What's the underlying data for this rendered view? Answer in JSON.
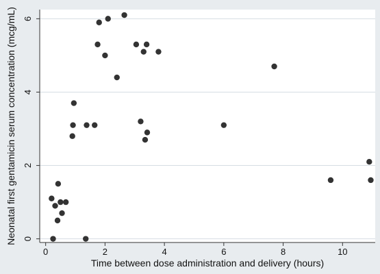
{
  "chart_data": {
    "type": "scatter",
    "title": "",
    "xlabel": "Time between dose administration and delivery (hours)",
    "ylabel": "Neonatal first gentamicin serum concentration (mcg/mL)",
    "xlim": [
      -0.2,
      11.1
    ],
    "ylim": [
      -0.1,
      6.25
    ],
    "xticks": [
      0,
      2,
      4,
      6,
      8,
      10
    ],
    "yticks": [
      0,
      2,
      4,
      6
    ],
    "grid": "horizontal",
    "legend": "none",
    "colors": {
      "page_background": "#e8ecef",
      "plot_background": "#ffffff",
      "point": "#333333",
      "gridline": "#d6dde3",
      "axis": "#333333"
    },
    "points": [
      {
        "x": 0.2,
        "y": 1.1
      },
      {
        "x": 0.25,
        "y": 0.0
      },
      {
        "x": 0.32,
        "y": 0.9
      },
      {
        "x": 0.4,
        "y": 0.5
      },
      {
        "x": 0.42,
        "y": 1.5
      },
      {
        "x": 0.5,
        "y": 1.0
      },
      {
        "x": 0.55,
        "y": 0.7
      },
      {
        "x": 0.68,
        "y": 1.0
      },
      {
        "x": 0.9,
        "y": 2.8
      },
      {
        "x": 0.92,
        "y": 3.1
      },
      {
        "x": 0.95,
        "y": 3.7
      },
      {
        "x": 1.35,
        "y": 0.0
      },
      {
        "x": 1.38,
        "y": 3.1
      },
      {
        "x": 1.65,
        "y": 3.1
      },
      {
        "x": 1.75,
        "y": 5.3
      },
      {
        "x": 1.8,
        "y": 5.9
      },
      {
        "x": 2.0,
        "y": 5.0
      },
      {
        "x": 2.1,
        "y": 6.0
      },
      {
        "x": 2.4,
        "y": 4.4
      },
      {
        "x": 2.65,
        "y": 6.1
      },
      {
        "x": 3.05,
        "y": 5.3
      },
      {
        "x": 3.2,
        "y": 3.2
      },
      {
        "x": 3.3,
        "y": 5.1
      },
      {
        "x": 3.35,
        "y": 2.7
      },
      {
        "x": 3.4,
        "y": 5.3
      },
      {
        "x": 3.42,
        "y": 2.9
      },
      {
        "x": 3.8,
        "y": 5.1
      },
      {
        "x": 6.0,
        "y": 3.1
      },
      {
        "x": 7.7,
        "y": 4.7
      },
      {
        "x": 9.6,
        "y": 1.6
      },
      {
        "x": 10.9,
        "y": 2.1
      },
      {
        "x": 10.95,
        "y": 1.6
      }
    ]
  }
}
